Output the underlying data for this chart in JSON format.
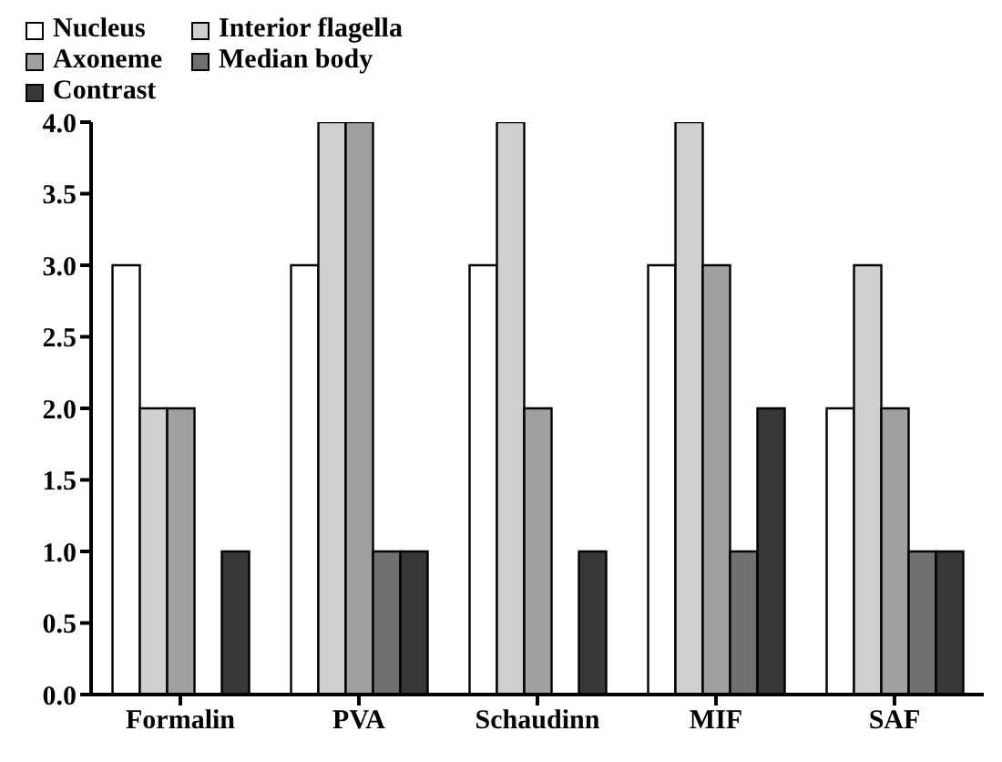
{
  "chart_data": {
    "type": "bar",
    "categories": [
      "Formalin",
      "PVA",
      "Schaudinn",
      "MIF",
      "SAF"
    ],
    "series": [
      {
        "name": "Nucleus",
        "color": "#ffffff",
        "values": [
          3,
          3,
          3,
          3,
          2
        ]
      },
      {
        "name": "Interior flagella",
        "color": "#d0d0d0",
        "values": [
          2,
          4,
          4,
          4,
          3
        ]
      },
      {
        "name": "Axoneme",
        "color": "#a0a0a0",
        "values": [
          2,
          4,
          2,
          3,
          2
        ]
      },
      {
        "name": "Median body",
        "color": "#707070",
        "values": [
          0,
          1,
          0,
          1,
          1
        ]
      },
      {
        "name": "Contrast",
        "color": "#383838",
        "values": [
          1,
          1,
          1,
          2,
          1
        ]
      }
    ],
    "ylim": [
      0,
      4
    ],
    "yticks": [
      {
        "value": 0,
        "label": "0.0"
      },
      {
        "value": 0.5,
        "label": "0.5"
      },
      {
        "value": 1,
        "label": "1.0"
      },
      {
        "value": 1.5,
        "label": "1.5"
      },
      {
        "value": 2,
        "label": "2.0"
      },
      {
        "value": 2.5,
        "label": "2.5"
      },
      {
        "value": 3,
        "label": "3.0"
      },
      {
        "value": 3.5,
        "label": "3.5"
      },
      {
        "value": 4,
        "label": "4.0"
      }
    ],
    "grid": false,
    "legend": "top left"
  }
}
